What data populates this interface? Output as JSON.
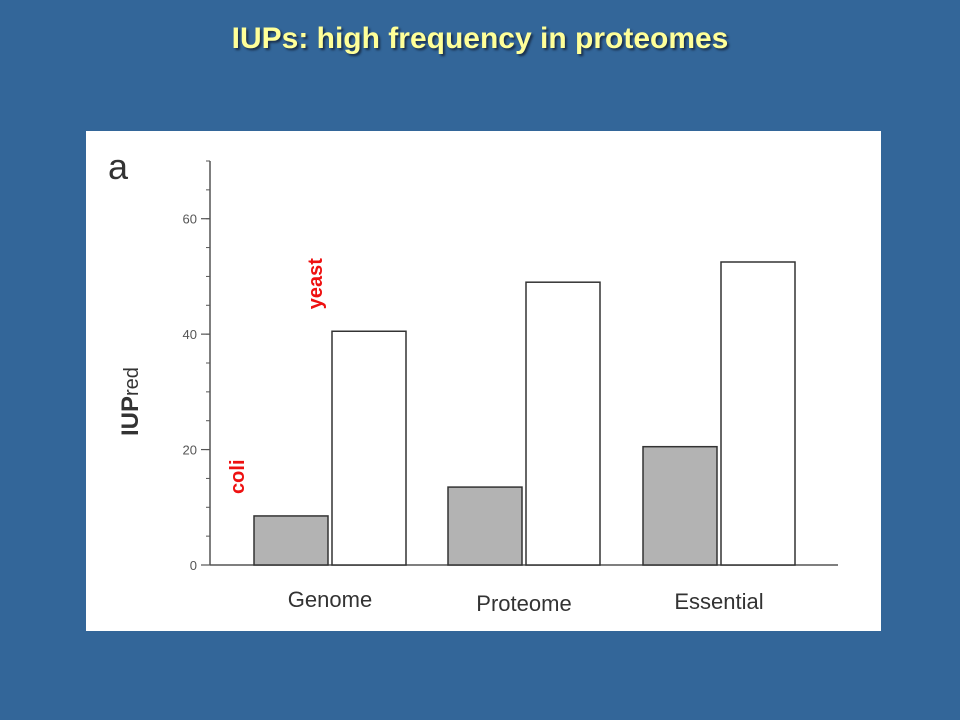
{
  "slide": {
    "title": "IUPs: high frequency in proteomes"
  },
  "colors": {
    "background": "#336699",
    "title": "#FFFF99",
    "coli_bar": "#b3b3b3",
    "yeast_bar": "#ffffff",
    "annotation": "#ee1111"
  },
  "chart_data": {
    "type": "bar",
    "panel_label": "a",
    "title": "",
    "xlabel": "",
    "ylabel_main": "IUP",
    "ylabel_sub": "red",
    "ylim": [
      0,
      70
    ],
    "yticks": [
      0,
      20,
      40,
      60
    ],
    "minor_ytick_step": 5,
    "grid": false,
    "categories": [
      "Genome",
      "Proteome",
      "Essential"
    ],
    "series": [
      {
        "name": "coli",
        "values": [
          8.5,
          13.5,
          20.5
        ]
      },
      {
        "name": "yeast",
        "values": [
          40.5,
          49,
          52.5
        ]
      }
    ],
    "annotations": [
      {
        "text": "coli",
        "series": 0,
        "category": 0
      },
      {
        "text": "yeast",
        "series": 1,
        "category": 0
      }
    ]
  }
}
